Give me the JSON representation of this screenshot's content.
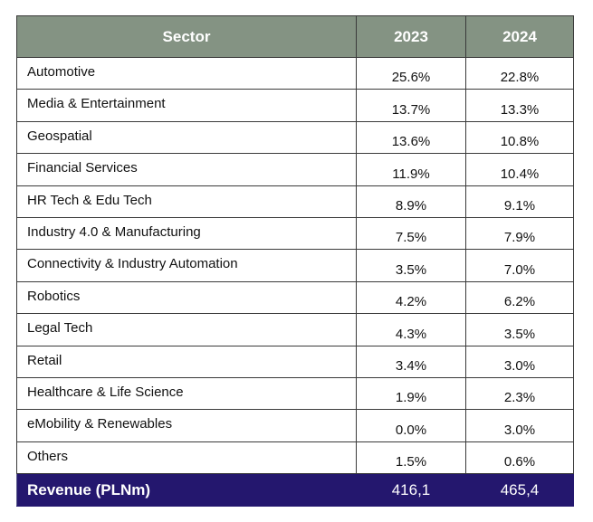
{
  "table": {
    "headers": [
      "Sector",
      "2023",
      "2024"
    ],
    "rows": [
      [
        "Automotive",
        "25.6%",
        "22.8%"
      ],
      [
        "Media & Entertainment",
        "13.7%",
        "13.3%"
      ],
      [
        "Geospatial",
        "13.6%",
        "10.8%"
      ],
      [
        "Financial Services",
        "11.9%",
        "10.4%"
      ],
      [
        "HR Tech & Edu Tech",
        "8.9%",
        "9.1%"
      ],
      [
        "Industry 4.0 & Manufacturing",
        "7.5%",
        "7.9%"
      ],
      [
        "Connectivity & Industry Automation",
        "3.5%",
        "7.0%"
      ],
      [
        "Robotics",
        "4.2%",
        "6.2%"
      ],
      [
        "Legal Tech",
        "4.3%",
        "3.5%"
      ],
      [
        "Retail",
        "3.4%",
        "3.0%"
      ],
      [
        "Healthcare & Life Science",
        "1.9%",
        "2.3%"
      ],
      [
        "eMobility & Renewables",
        "0.0%",
        "3.0%"
      ],
      [
        "Others",
        "1.5%",
        "0.6%"
      ]
    ],
    "total": [
      "Revenue (PLNm)",
      "416,1",
      "465,4"
    ]
  },
  "colors": {
    "header_bg": "#849383",
    "total_bg": "#24176e"
  }
}
